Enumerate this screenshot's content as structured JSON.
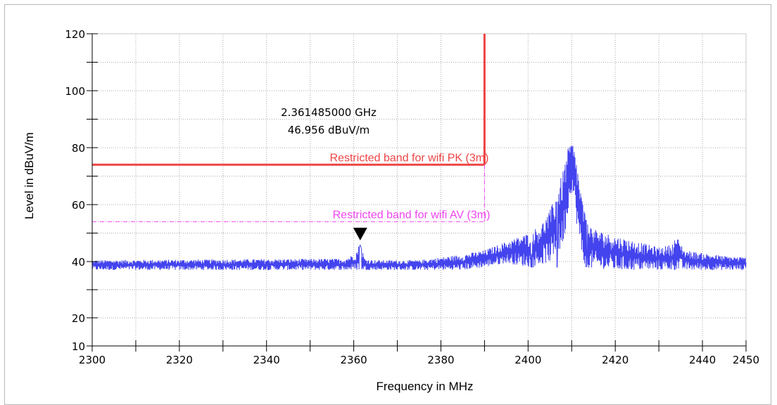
{
  "chart_data": {
    "type": "line",
    "xlabel": "Frequency in MHz",
    "ylabel": "Level in dBuV/m",
    "xlim": [
      2300,
      2450
    ],
    "ylim": [
      10,
      120
    ],
    "x_ticks": [
      2300,
      2320,
      2340,
      2360,
      2380,
      2400,
      2420,
      2440,
      2450
    ],
    "y_ticks": [
      10,
      20,
      40,
      60,
      80,
      100,
      120
    ],
    "y_minor_ticks": [
      30,
      50,
      70,
      90,
      110
    ],
    "grid": true,
    "marker": {
      "freq_label": "2.361485000 GHz",
      "level_label": "46.956 dBuV/m",
      "x": 2361.485,
      "y": 46.956
    },
    "limit_lines": [
      {
        "label": "Restricted band for  wifi  PK (3m)",
        "level": 74,
        "x_end": 2390,
        "color": "#ee4444",
        "style": "solid"
      },
      {
        "label": "Restricted band for  wifi  AV (3m)",
        "level": 54,
        "x_end": 2390,
        "color": "#ee44ee",
        "style": "dashdot"
      }
    ],
    "band_edge": {
      "x": 2390,
      "y_top": 120,
      "color": "#ee4444"
    },
    "series": [
      {
        "color": "#4444ee",
        "envelope_x": [
          2300,
          2355,
          2358,
          2360.5,
          2361.5,
          2362.5,
          2365,
          2375,
          2380,
          2385,
          2390,
          2395,
          2400,
          2403,
          2405,
          2406.5,
          2408,
          2409,
          2409.7,
          2410.2,
          2411,
          2412,
          2413,
          2414,
          2416,
          2420,
          2425,
          2430,
          2433,
          2434,
          2436,
          2440,
          2445,
          2450
        ],
        "upper": [
          40.5,
          41,
          41,
          43,
          46.9,
          41,
          40.5,
          40.5,
          41.5,
          42.5,
          44,
          47,
          50,
          53,
          58,
          64,
          72,
          79,
          82,
          82,
          77,
          66,
          57,
          53,
          51,
          49,
          47,
          45,
          46,
          49,
          44,
          43,
          42,
          41.5
        ],
        "lower": [
          37,
          37,
          37,
          37,
          37,
          37,
          37,
          37,
          37,
          37,
          38,
          39.5,
          38,
          39,
          40,
          41,
          46,
          55,
          64,
          64,
          55,
          44,
          38,
          37.5,
          37.5,
          37,
          37,
          37,
          37,
          37,
          37,
          37,
          37,
          37
        ],
        "dip_x": [
          2401,
          2406.5,
          2413.5
        ],
        "dip_y": [
          38,
          38,
          38
        ]
      }
    ]
  }
}
